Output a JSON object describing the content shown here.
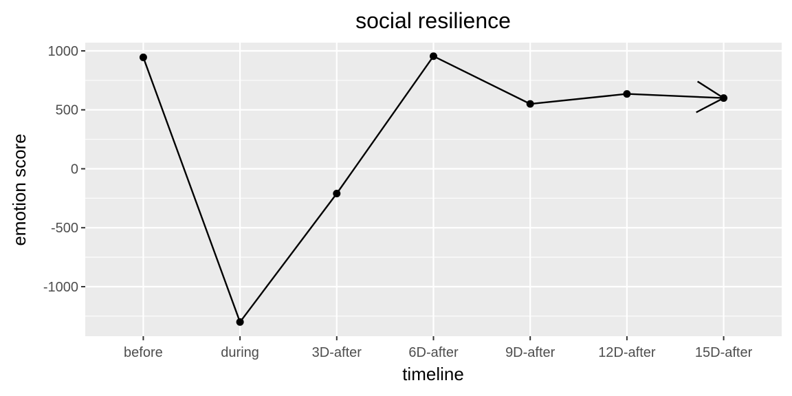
{
  "chart_data": {
    "type": "line",
    "title": "social resilience",
    "xlabel": "timeline",
    "ylabel": "emotion score",
    "categories": [
      "before",
      "during",
      "3D-after",
      "6D-after",
      "9D-after",
      "12D-after",
      "15D-after"
    ],
    "series": [
      {
        "name": "emotion score",
        "values": [
          945,
          -1300,
          -210,
          955,
          550,
          635,
          600
        ]
      }
    ],
    "yticks": [
      1000,
      500,
      0,
      -500,
      -1000
    ],
    "ytick_labels": [
      "1000",
      "500",
      "0",
      "-500",
      "-1000"
    ],
    "ylim": [
      -1420,
      1070
    ],
    "grid": true,
    "legend": "none",
    "end_arrow": true,
    "colors": {
      "panel": "#ebebeb",
      "grid": "#ffffff",
      "line": "#000000",
      "text": "#4d4d4d"
    }
  }
}
